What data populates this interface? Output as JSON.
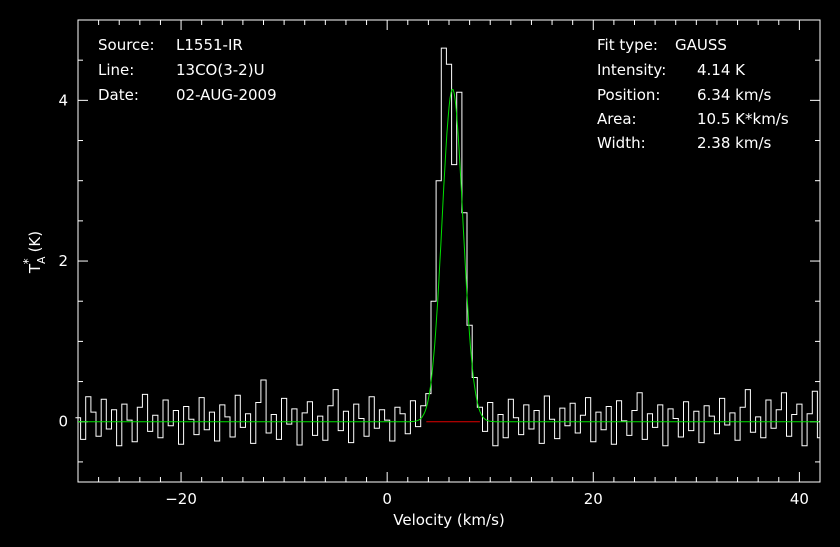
{
  "chart_data": {
    "type": "line",
    "info": {
      "source_label": "Source:",
      "source": "L1551-IR",
      "line_label": "Line:",
      "line": "13CO(3-2)U",
      "date_label": "Date:",
      "date": "02-AUG-2009"
    },
    "fit": {
      "type_label": "Fit type:",
      "type": "GAUSS",
      "intensity_label": "Intensity:",
      "intensity": "4.14 K",
      "position_label": "Position:",
      "position": "6.34 km/s",
      "area_label": "Area:",
      "area": "10.5 K*km/s",
      "width_label": "Width:",
      "width": "2.38 km/s"
    },
    "xlabel": "Velocity (km/s)",
    "ylabel": "T",
    "ylabel_sub": "A",
    "ylabel_sup": "*",
    "ylabel_unit": "(K)",
    "xlim": [
      -30,
      42
    ],
    "ylim": [
      -0.75,
      5.0
    ],
    "xticks": [
      -20,
      0,
      20,
      40
    ],
    "yticks": [
      0,
      2,
      4
    ],
    "series": [
      {
        "color": "#ffffff",
        "x": [
          -30,
          -29.5,
          -29,
          -28.5,
          -28,
          -27.5,
          -27,
          -26.5,
          -26,
          -25.5,
          -25,
          -24.5,
          -24,
          -23.5,
          -23,
          -22.5,
          -22,
          -21.5,
          -21,
          -20.5,
          -20,
          -19.5,
          -19,
          -18.5,
          -18,
          -17.5,
          -17,
          -16.5,
          -16,
          -15.5,
          -15,
          -14.5,
          -14,
          -13.5,
          -13,
          -12.5,
          -12,
          -11.5,
          -11,
          -10.5,
          -10,
          -9.5,
          -9,
          -8.5,
          -8,
          -7.5,
          -7,
          -6.5,
          -6,
          -5.5,
          -5,
          -4.5,
          -4,
          -3.5,
          -3,
          -2.5,
          -2,
          -1.5,
          -1,
          -0.5,
          0,
          0.5,
          1,
          1.5,
          2,
          2.5,
          3,
          3.5,
          4,
          4.5,
          5,
          5.5,
          6,
          6.5,
          7,
          7.5,
          8,
          8.5,
          9,
          9.5,
          10,
          10.5,
          11,
          11.5,
          12,
          12.5,
          13,
          13.5,
          14,
          14.5,
          15,
          15.5,
          16,
          16.5,
          17,
          17.5,
          18,
          18.5,
          19,
          19.5,
          20,
          20.5,
          21,
          21.5,
          22,
          22.5,
          23,
          23.5,
          24,
          24.5,
          25,
          25.5,
          26,
          26.5,
          27,
          27.5,
          28,
          28.5,
          29,
          29.5,
          30,
          30.5,
          31,
          31.5,
          32,
          32.5,
          33,
          33.5,
          34,
          34.5,
          35,
          35.5,
          36,
          36.5,
          37,
          37.5,
          38,
          38.5,
          39,
          39.5,
          40,
          40.5,
          41,
          41.5,
          42
        ],
        "y": [
          0.05,
          -0.22,
          0.31,
          0.12,
          -0.18,
          0.28,
          -0.09,
          0.15,
          -0.3,
          0.22,
          0.02,
          -0.25,
          0.18,
          0.34,
          -0.12,
          0.08,
          -0.2,
          0.27,
          -0.05,
          0.14,
          -0.28,
          0.19,
          0.03,
          -0.16,
          0.3,
          -0.1,
          0.12,
          -0.24,
          0.21,
          0.06,
          -0.19,
          0.33,
          -0.07,
          0.1,
          -0.27,
          0.24,
          0.52,
          -0.14,
          0.09,
          -0.22,
          0.29,
          -0.03,
          0.16,
          -0.29,
          0.11,
          0.25,
          -0.17,
          0.07,
          -0.23,
          0.2,
          0.4,
          -0.11,
          0.13,
          -0.26,
          0.22,
          0.04,
          -0.18,
          0.31,
          -0.08,
          0.15,
          0.02,
          -0.24,
          0.18,
          0.1,
          -0.15,
          0.26,
          -0.06,
          0.2,
          0.35,
          1.5,
          3.0,
          4.65,
          4.45,
          3.2,
          4.1,
          2.6,
          1.2,
          0.55,
          0.18,
          -0.12,
          0.24,
          -0.3,
          0.09,
          -0.2,
          0.28,
          0.05,
          -0.16,
          0.21,
          -0.09,
          0.14,
          -0.27,
          0.32,
          0.03,
          -0.21,
          0.17,
          -0.05,
          0.23,
          -0.14,
          0.08,
          0.3,
          -0.25,
          0.12,
          -0.1,
          0.19,
          -0.28,
          0.26,
          0.01,
          -0.17,
          0.14,
          0.36,
          -0.22,
          0.1,
          -0.07,
          0.21,
          -0.3,
          0.16,
          0.04,
          -0.19,
          0.25,
          -0.11,
          0.13,
          -0.26,
          0.2,
          0.07,
          -0.15,
          0.29,
          -0.04,
          0.11,
          -0.23,
          0.18,
          0.4,
          -0.13,
          0.06,
          -0.2,
          0.27,
          -0.08,
          0.15,
          0.36,
          -0.18,
          0.09,
          0.22,
          -0.3,
          0.1,
          0.38,
          -0.2
        ]
      },
      {
        "color": "#00e000",
        "kind": "gaussian",
        "amplitude": 4.14,
        "center": 6.34,
        "fwhm": 2.38
      }
    ],
    "baseline_window": {
      "color": "#e00000",
      "x": [
        3.8,
        9.0
      ],
      "y": 0
    },
    "colors": {
      "background": "#000000",
      "axes": "#ffffff",
      "fit": "#00e000",
      "window": "#e00000"
    }
  }
}
